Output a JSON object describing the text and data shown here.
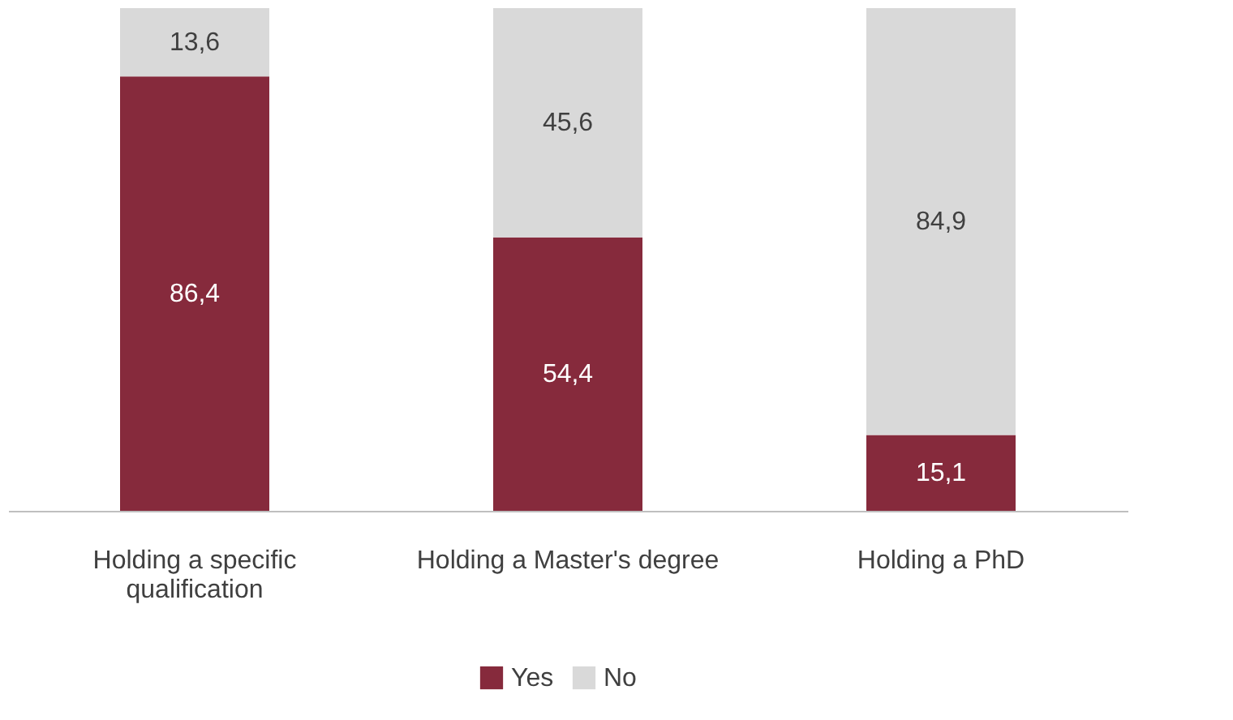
{
  "chart_data": {
    "type": "bar",
    "stacked": true,
    "categories": [
      "Holding a specific qualification",
      "Holding a Master's degree",
      "Holding a PhD"
    ],
    "series": [
      {
        "name": "Yes",
        "color": "#862a3c",
        "values": [
          86.4,
          54.4,
          15.1
        ],
        "value_labels": [
          "86,4",
          "54,4",
          "15,1"
        ]
      },
      {
        "name": "No",
        "color": "#d9d9d9",
        "values": [
          13.6,
          45.6,
          84.9
        ],
        "value_labels": [
          "13,6",
          "45,6",
          "84,9"
        ]
      }
    ],
    "legend": "bottom",
    "grid": false
  }
}
